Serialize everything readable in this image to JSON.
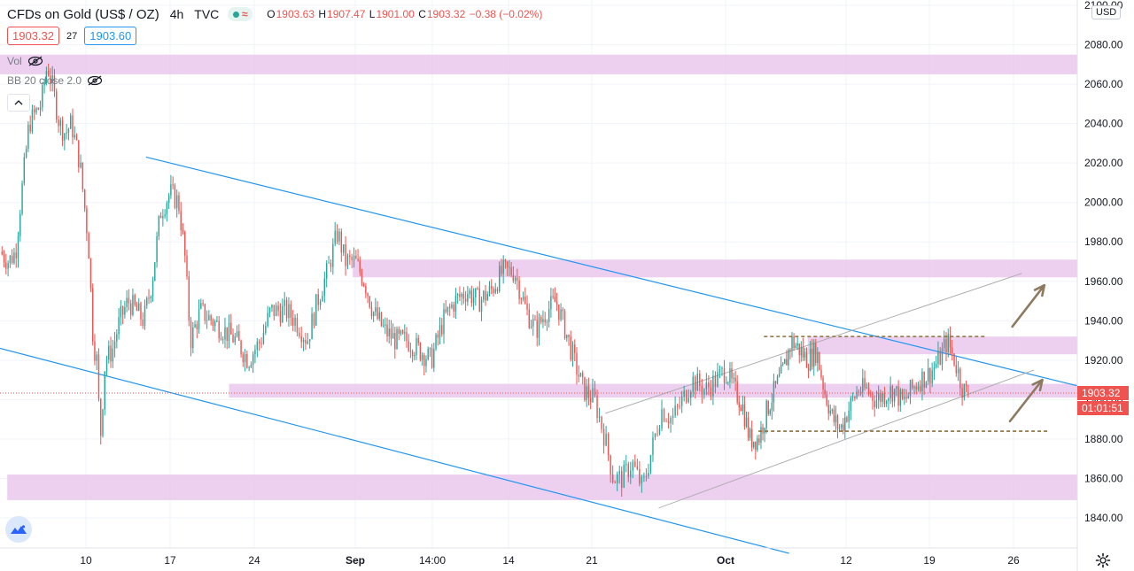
{
  "header": {
    "symbol": "CFDs on Gold (US$ / OZ)",
    "interval": "4h",
    "source": "TVC",
    "ohlc": {
      "o_label": "O",
      "o": "1903.63",
      "h_label": "H",
      "h": "1907.47",
      "l_label": "L",
      "l": "1901.00",
      "c_label": "C",
      "c": "1903.32",
      "change": "−0.38 (−0.02%)"
    },
    "sell_price": "1903.32",
    "spread": "27",
    "buy_price": "1903.60"
  },
  "indicators": {
    "vol": "Vol",
    "bb": "BB 20 close 2.0"
  },
  "currency": "USD",
  "last_price_label": "1903.32",
  "countdown": "01:01:51",
  "colors": {
    "up": "#26a69a",
    "down": "#ef5350",
    "zone": "#e9c4ec",
    "channel": "#2196f3",
    "arrow": "#8d7a60",
    "support": "#8b6f3a"
  },
  "chart_data": {
    "type": "candlestick",
    "title": "",
    "ylim": [
      1835,
      2100
    ],
    "y_ticks": [
      2100,
      2080,
      2060,
      2040,
      2020,
      2000,
      1980,
      1960,
      1940,
      1920,
      1900,
      1880,
      1860,
      1840
    ],
    "x_ticks": [
      {
        "label": "10",
        "t": 10
      },
      {
        "label": "17",
        "t": 17
      },
      {
        "label": "24",
        "t": 24
      },
      {
        "label": "Sep",
        "t": 32
      },
      {
        "label": "14:00",
        "t": 38.6
      },
      {
        "label": "14",
        "t": 45
      },
      {
        "label": "21",
        "t": 52
      },
      {
        "label": "Oct",
        "t": 62
      },
      {
        "label": "12",
        "t": 73
      },
      {
        "label": "19",
        "t": 80
      },
      {
        "label": "26",
        "t": 87
      }
    ],
    "x_range": [
      2.9,
      93.2
    ],
    "bars_per_day": 6,
    "close_path_anchors": [
      [
        2.9,
        1975
      ],
      [
        3.6,
        1970
      ],
      [
        4.2,
        1975
      ],
      [
        4.6,
        2000
      ],
      [
        5.3,
        2040
      ],
      [
        6.3,
        2050
      ],
      [
        6.8,
        2070
      ],
      [
        7.2,
        2060
      ],
      [
        7.8,
        2040
      ],
      [
        8.3,
        2035
      ],
      [
        8.8,
        2040
      ],
      [
        9.5,
        2020
      ],
      [
        10.2,
        1980
      ],
      [
        10.6,
        1930
      ],
      [
        10.9,
        1920
      ],
      [
        11.2,
        1880
      ],
      [
        11.6,
        1920
      ],
      [
        12.2,
        1925
      ],
      [
        12.8,
        1940
      ],
      [
        13.5,
        1950
      ],
      [
        14.2,
        1945
      ],
      [
        14.8,
        1940
      ],
      [
        15.5,
        1960
      ],
      [
        16.2,
        1995
      ],
      [
        17.0,
        2005
      ],
      [
        17.7,
        2000
      ],
      [
        18.2,
        1975
      ],
      [
        18.7,
        1930
      ],
      [
        19.5,
        1945
      ],
      [
        20.5,
        1940
      ],
      [
        21.5,
        1935
      ],
      [
        22.5,
        1930
      ],
      [
        23.5,
        1920
      ],
      [
        24.5,
        1930
      ],
      [
        25.3,
        1945
      ],
      [
        26.5,
        1945
      ],
      [
        27.3,
        1940
      ],
      [
        28.2,
        1930
      ],
      [
        29.0,
        1950
      ],
      [
        29.8,
        1965
      ],
      [
        30.6,
        1985
      ],
      [
        31.2,
        1970
      ],
      [
        32.0,
        1970
      ],
      [
        32.8,
        1960
      ],
      [
        33.5,
        1945
      ],
      [
        34.5,
        1935
      ],
      [
        35.5,
        1930
      ],
      [
        36.5,
        1930
      ],
      [
        37.5,
        1925
      ],
      [
        38.5,
        1920
      ],
      [
        39.5,
        1940
      ],
      [
        40.5,
        1950
      ],
      [
        41.5,
        1955
      ],
      [
        42.5,
        1950
      ],
      [
        43.5,
        1955
      ],
      [
        44.5,
        1965
      ],
      [
        45.5,
        1965
      ],
      [
        46.5,
        1945
      ],
      [
        47.3,
        1935
      ],
      [
        48.2,
        1945
      ],
      [
        49.0,
        1950
      ],
      [
        49.8,
        1935
      ],
      [
        50.5,
        1920
      ],
      [
        51.3,
        1905
      ],
      [
        52.2,
        1900
      ],
      [
        53.0,
        1880
      ],
      [
        53.6,
        1860
      ],
      [
        54.3,
        1860
      ],
      [
        55.0,
        1868
      ],
      [
        55.8,
        1855
      ],
      [
        56.5,
        1875
      ],
      [
        57.2,
        1895
      ],
      [
        58.0,
        1890
      ],
      [
        58.8,
        1900
      ],
      [
        59.5,
        1910
      ],
      [
        60.5,
        1905
      ],
      [
        61.3,
        1910
      ],
      [
        62.0,
        1915
      ],
      [
        62.8,
        1905
      ],
      [
        63.5,
        1898
      ],
      [
        64.2,
        1880
      ],
      [
        65.0,
        1880
      ],
      [
        65.8,
        1895
      ],
      [
        66.5,
        1905
      ],
      [
        67.3,
        1915
      ],
      [
        68.0,
        1930
      ],
      [
        68.8,
        1925
      ],
      [
        69.5,
        1920
      ],
      [
        70.3,
        1925
      ],
      [
        71.0,
        1905
      ],
      [
        71.8,
        1890
      ],
      [
        72.5,
        1885
      ],
      [
        73.2,
        1895
      ],
      [
        74.0,
        1905
      ],
      [
        74.8,
        1905
      ],
      [
        75.5,
        1900
      ],
      [
        76.3,
        1903
      ],
      [
        77.0,
        1905
      ],
      [
        77.8,
        1898
      ],
      [
        78.5,
        1905
      ],
      [
        79.2,
        1910
      ],
      [
        80.0,
        1913
      ],
      [
        80.8,
        1920
      ],
      [
        81.5,
        1930
      ],
      [
        82.2,
        1918
      ],
      [
        82.8,
        1905
      ],
      [
        83.3,
        1903
      ]
    ],
    "last": {
      "open": 1903.63,
      "high": 1907.47,
      "low": 1901.0,
      "close": 1903.32
    },
    "zones": [
      {
        "x0": 2.9,
        "x1": 93.2,
        "y0": 2065,
        "y1": 2075
      },
      {
        "x0": 31.8,
        "x1": 93.2,
        "y0": 1962,
        "y1": 1971
      },
      {
        "x0": 69.5,
        "x1": 93.2,
        "y0": 1923,
        "y1": 1932
      },
      {
        "x0": 21.9,
        "x1": 93.2,
        "y0": 1901,
        "y1": 1908
      },
      {
        "x0": 3.5,
        "x1": 93.2,
        "y0": 1849,
        "y1": 1862
      }
    ],
    "channel_lines": [
      {
        "x0": 15.0,
        "y0": 2023,
        "x1": 93.2,
        "y1": 1907
      },
      {
        "x0": 2.9,
        "y0": 1926,
        "x1": 67.8,
        "y1": 1822
      }
    ],
    "thin_lines": [
      {
        "x0": 57.0,
        "y0": 1845,
        "x1": 89.0,
        "y1": 1915
      },
      {
        "x0": 53.0,
        "y0": 1893,
        "x1": 87.8,
        "y1": 1964
      }
    ],
    "dashed_levels": [
      {
        "x0": 65.5,
        "x1": 84.8,
        "y": 1932
      },
      {
        "x0": 65.0,
        "x1": 90.5,
        "y": 1884
      }
    ],
    "arrows": [
      {
        "x0": 86.9,
        "y0": 1937,
        "x1": 90.0,
        "y1": 1958
      },
      {
        "x0": 86.7,
        "y0": 1889,
        "x1": 89.8,
        "y1": 1910
      }
    ]
  }
}
